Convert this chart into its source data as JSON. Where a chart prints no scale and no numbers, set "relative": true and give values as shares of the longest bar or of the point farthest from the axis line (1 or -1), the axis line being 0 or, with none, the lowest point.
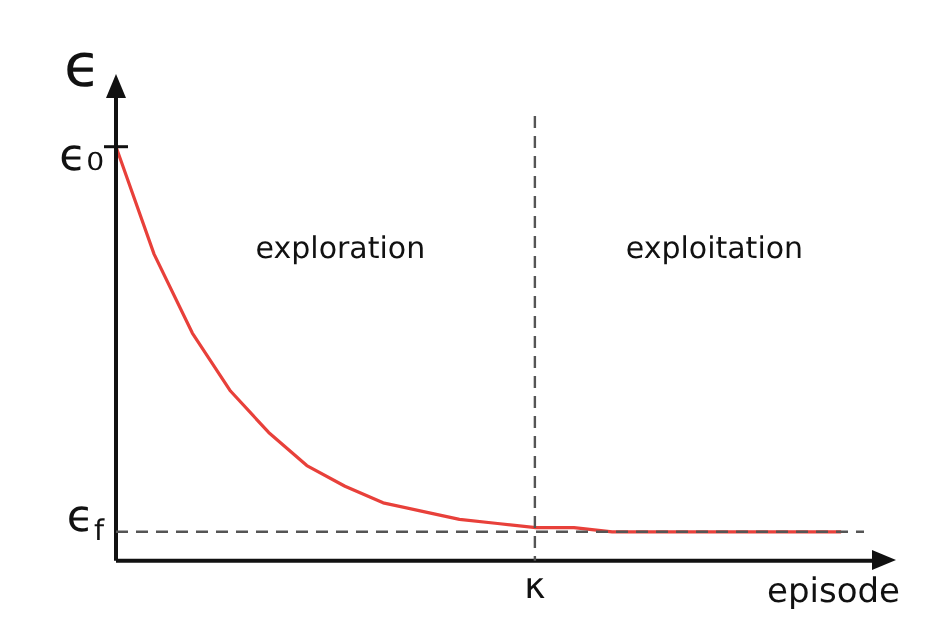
{
  "chart_data": {
    "type": "line",
    "relative": true,
    "ylabel": "ϵ",
    "xlabel": "episode",
    "categories": [
      null,
      null,
      null,
      null,
      null,
      null,
      null,
      null,
      null,
      null,
      null,
      null,
      null,
      null,
      null,
      null,
      null,
      null,
      null,
      null
    ],
    "series": [
      {
        "color": "#e8403a",
        "values": [
          1.0,
          0.74,
          0.55,
          0.41,
          0.31,
          0.23,
          0.18,
          0.14,
          0.12,
          0.1,
          0.09,
          0.08,
          0.08,
          0.07,
          0.07,
          0.07,
          0.07,
          0.07,
          0.07,
          0.07
        ]
      }
    ],
    "ref_lines": [
      {
        "axis": "y",
        "value": 0.07,
        "label": "ϵ$_{f}$",
        "line_style": "dashed",
        "color": "#555555"
      }
    ],
    "annotations": [
      "ϵ₀",
      "exploration",
      "exploitation",
      "κ"
    ],
    "legend": false,
    "grid": false,
    "marker": "none",
    "line_style": "solid"
  }
}
